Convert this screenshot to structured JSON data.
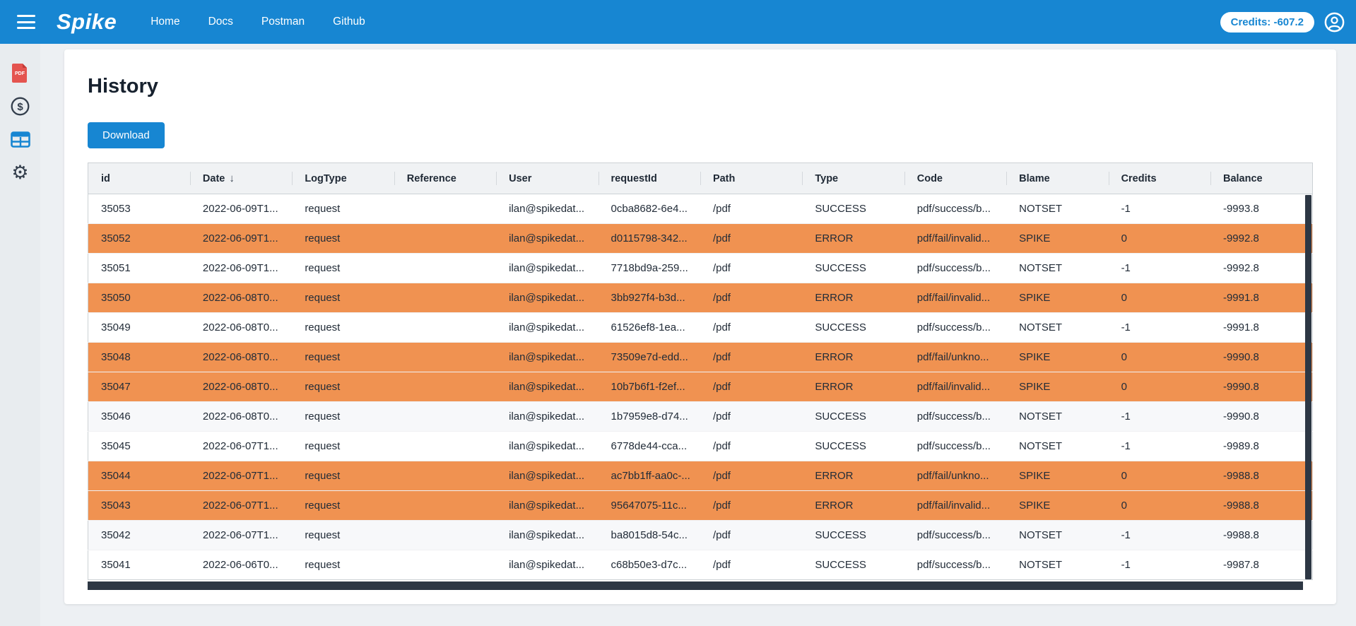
{
  "topbar": {
    "logo": "Spike",
    "nav": [
      "Home",
      "Docs",
      "Postman",
      "Github"
    ],
    "credits_label": "Credits: -607.2"
  },
  "sidebar": {
    "items": [
      {
        "name": "pdf-icon",
        "label": "PDF"
      },
      {
        "name": "billing-dollar-icon",
        "label": "$"
      },
      {
        "name": "history-table-icon",
        "label": "history",
        "active": true
      },
      {
        "name": "settings-gear-icon",
        "label": "settings",
        "glyph": "⚙"
      }
    ]
  },
  "page": {
    "title": "History",
    "download_label": "Download"
  },
  "table": {
    "sorted_column": "Date",
    "sort_direction": "desc",
    "sort_arrow": "↓",
    "columns": [
      {
        "key": "id",
        "label": "id"
      },
      {
        "key": "date",
        "label": "Date",
        "sort": "desc"
      },
      {
        "key": "logType",
        "label": "LogType"
      },
      {
        "key": "reference",
        "label": "Reference"
      },
      {
        "key": "user",
        "label": "User"
      },
      {
        "key": "requestId",
        "label": "requestId"
      },
      {
        "key": "path",
        "label": "Path"
      },
      {
        "key": "type",
        "label": "Type"
      },
      {
        "key": "code",
        "label": "Code"
      },
      {
        "key": "blame",
        "label": "Blame"
      },
      {
        "key": "credits",
        "label": "Credits"
      },
      {
        "key": "balance",
        "label": "Balance"
      }
    ],
    "rows": [
      {
        "id": "35053",
        "date": "2022-06-09T1...",
        "logType": "request",
        "reference": "",
        "user": "ilan@spikedat...",
        "requestId": "0cba8682-6e4...",
        "path": "/pdf",
        "type": "SUCCESS",
        "code": "pdf/success/b...",
        "blame": "NOTSET",
        "credits": "-1",
        "balance": "-9993.8"
      },
      {
        "id": "35052",
        "date": "2022-06-09T1...",
        "logType": "request",
        "reference": "",
        "user": "ilan@spikedat...",
        "requestId": "d0115798-342...",
        "path": "/pdf",
        "type": "ERROR",
        "code": "pdf/fail/invalid...",
        "blame": "SPIKE",
        "credits": "0",
        "balance": "-9992.8"
      },
      {
        "id": "35051",
        "date": "2022-06-09T1...",
        "logType": "request",
        "reference": "",
        "user": "ilan@spikedat...",
        "requestId": "7718bd9a-259...",
        "path": "/pdf",
        "type": "SUCCESS",
        "code": "pdf/success/b...",
        "blame": "NOTSET",
        "credits": "-1",
        "balance": "-9992.8"
      },
      {
        "id": "35050",
        "date": "2022-06-08T0...",
        "logType": "request",
        "reference": "",
        "user": "ilan@spikedat...",
        "requestId": "3bb927f4-b3d...",
        "path": "/pdf",
        "type": "ERROR",
        "code": "pdf/fail/invalid...",
        "blame": "SPIKE",
        "credits": "0",
        "balance": "-9991.8"
      },
      {
        "id": "35049",
        "date": "2022-06-08T0...",
        "logType": "request",
        "reference": "",
        "user": "ilan@spikedat...",
        "requestId": "61526ef8-1ea...",
        "path": "/pdf",
        "type": "SUCCESS",
        "code": "pdf/success/b...",
        "blame": "NOTSET",
        "credits": "-1",
        "balance": "-9991.8"
      },
      {
        "id": "35048",
        "date": "2022-06-08T0...",
        "logType": "request",
        "reference": "",
        "user": "ilan@spikedat...",
        "requestId": "73509e7d-edd...",
        "path": "/pdf",
        "type": "ERROR",
        "code": "pdf/fail/unkno...",
        "blame": "SPIKE",
        "credits": "0",
        "balance": "-9990.8"
      },
      {
        "id": "35047",
        "date": "2022-06-08T0...",
        "logType": "request",
        "reference": "",
        "user": "ilan@spikedat...",
        "requestId": "10b7b6f1-f2ef...",
        "path": "/pdf",
        "type": "ERROR",
        "code": "pdf/fail/invalid...",
        "blame": "SPIKE",
        "credits": "0",
        "balance": "-9990.8"
      },
      {
        "id": "35046",
        "date": "2022-06-08T0...",
        "logType": "request",
        "reference": "",
        "user": "ilan@spikedat...",
        "requestId": "1b7959e8-d74...",
        "path": "/pdf",
        "type": "SUCCESS",
        "code": "pdf/success/b...",
        "blame": "NOTSET",
        "credits": "-1",
        "balance": "-9990.8"
      },
      {
        "id": "35045",
        "date": "2022-06-07T1...",
        "logType": "request",
        "reference": "",
        "user": "ilan@spikedat...",
        "requestId": "6778de44-cca...",
        "path": "/pdf",
        "type": "SUCCESS",
        "code": "pdf/success/b...",
        "blame": "NOTSET",
        "credits": "-1",
        "balance": "-9989.8"
      },
      {
        "id": "35044",
        "date": "2022-06-07T1...",
        "logType": "request",
        "reference": "",
        "user": "ilan@spikedat...",
        "requestId": "ac7bb1ff-aa0c-...",
        "path": "/pdf",
        "type": "ERROR",
        "code": "pdf/fail/unkno...",
        "blame": "SPIKE",
        "credits": "0",
        "balance": "-9988.8"
      },
      {
        "id": "35043",
        "date": "2022-06-07T1...",
        "logType": "request",
        "reference": "",
        "user": "ilan@spikedat...",
        "requestId": "95647075-11c...",
        "path": "/pdf",
        "type": "ERROR",
        "code": "pdf/fail/invalid...",
        "blame": "SPIKE",
        "credits": "0",
        "balance": "-9988.8"
      },
      {
        "id": "35042",
        "date": "2022-06-07T1...",
        "logType": "request",
        "reference": "",
        "user": "ilan@spikedat...",
        "requestId": "ba8015d8-54c...",
        "path": "/pdf",
        "type": "SUCCESS",
        "code": "pdf/success/b...",
        "blame": "NOTSET",
        "credits": "-1",
        "balance": "-9988.8"
      },
      {
        "id": "35041",
        "date": "2022-06-06T0...",
        "logType": "request",
        "reference": "",
        "user": "ilan@spikedat...",
        "requestId": "c68b50e3-d7c...",
        "path": "/pdf",
        "type": "SUCCESS",
        "code": "pdf/success/b...",
        "blame": "NOTSET",
        "credits": "-1",
        "balance": "-9987.8"
      }
    ]
  },
  "colors": {
    "accent": "#1786d2",
    "error_row": "#f09251",
    "scrollbar": "#2d3744",
    "pdf_icon_red": "#e4544f",
    "sidebar_icon_dark": "#333e4c"
  }
}
